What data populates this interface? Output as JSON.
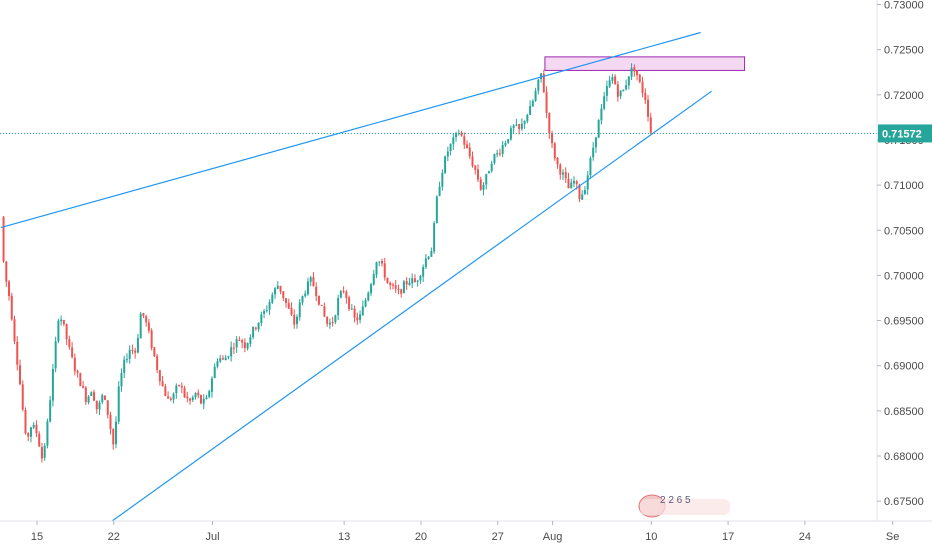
{
  "chart_data": {
    "type": "candlestick",
    "y_axis": {
      "position": "right",
      "ylim": [
        0.6728,
        0.7305
      ],
      "ticks": [
        "0.67500",
        "0.68000",
        "0.68500",
        "0.69000",
        "0.69500",
        "0.70000",
        "0.70500",
        "0.71000",
        "0.71500",
        "0.72000",
        "0.72500",
        "0.73000"
      ]
    },
    "x_axis": {
      "labels": [
        {
          "text": "15",
          "day": 3
        },
        {
          "text": "22",
          "day": 10
        },
        {
          "text": "Jul",
          "day": 19
        },
        {
          "text": "13",
          "day": 31
        },
        {
          "text": "20",
          "day": 38
        },
        {
          "text": "27",
          "day": 45
        },
        {
          "text": "Aug",
          "day": 50
        },
        {
          "text": "10",
          "day": 59
        },
        {
          "text": "17",
          "day": 66
        },
        {
          "text": "24",
          "day": 73
        },
        {
          "text": "Se",
          "day": 81
        }
      ]
    },
    "last_price": {
      "value": 0.71572,
      "label": "0.71572",
      "color": "#26a69a"
    },
    "colors": {
      "up": "#26a69a",
      "down": "#ef5350",
      "trendline": "#2196f3",
      "zone_fill": "#f3d2f0",
      "zone_border": "#9c27b0",
      "price_line": "#26a69a"
    },
    "price_path": [
      [
        -0.3,
        0.7065
      ],
      [
        0,
        0.7005
      ],
      [
        0.5,
        0.6975
      ],
      [
        1,
        0.6925
      ],
      [
        1.5,
        0.6875
      ],
      [
        2,
        0.6815
      ],
      [
        2.5,
        0.6835
      ],
      [
        3,
        0.6825
      ],
      [
        3.5,
        0.6795
      ],
      [
        4,
        0.684
      ],
      [
        4.5,
        0.69
      ],
      [
        5,
        0.696
      ],
      [
        5.5,
        0.694
      ],
      [
        6,
        0.6915
      ],
      [
        6.5,
        0.6895
      ],
      [
        7,
        0.688
      ],
      [
        7.5,
        0.6862
      ],
      [
        8,
        0.6875
      ],
      [
        8.5,
        0.685
      ],
      [
        9,
        0.6868
      ],
      [
        9.5,
        0.6845
      ],
      [
        10,
        0.681
      ],
      [
        10.5,
        0.688
      ],
      [
        11,
        0.6905
      ],
      [
        11.5,
        0.692
      ],
      [
        12,
        0.6915
      ],
      [
        12.5,
        0.6962
      ],
      [
        13,
        0.6945
      ],
      [
        13.5,
        0.692
      ],
      [
        14,
        0.6895
      ],
      [
        14.5,
        0.6875
      ],
      [
        15,
        0.686
      ],
      [
        15.5,
        0.687
      ],
      [
        16,
        0.688
      ],
      [
        16.5,
        0.6865
      ],
      [
        17,
        0.686
      ],
      [
        17.5,
        0.687
      ],
      [
        18,
        0.6858
      ],
      [
        18.5,
        0.6862
      ],
      [
        19,
        0.689
      ],
      [
        19.5,
        0.691
      ],
      [
        20,
        0.6905
      ],
      [
        20.5,
        0.6915
      ],
      [
        21,
        0.6925
      ],
      [
        21.5,
        0.693
      ],
      [
        22,
        0.6922
      ],
      [
        22.5,
        0.6935
      ],
      [
        23,
        0.6945
      ],
      [
        23.5,
        0.6955
      ],
      [
        24,
        0.6965
      ],
      [
        24.5,
        0.698
      ],
      [
        25,
        0.699
      ],
      [
        25.5,
        0.6975
      ],
      [
        26,
        0.696
      ],
      [
        26.5,
        0.6945
      ],
      [
        27,
        0.697
      ],
      [
        27.5,
        0.6985
      ],
      [
        28,
        0.6995
      ],
      [
        28.5,
        0.698
      ],
      [
        29,
        0.696
      ],
      [
        29.5,
        0.6945
      ],
      [
        30,
        0.695
      ],
      [
        30.5,
        0.6975
      ],
      [
        31,
        0.6985
      ],
      [
        31.5,
        0.6965
      ],
      [
        32,
        0.695
      ],
      [
        32.5,
        0.6955
      ],
      [
        33,
        0.6975
      ],
      [
        33.5,
        0.6995
      ],
      [
        34,
        0.702
      ],
      [
        34.5,
        0.7008
      ],
      [
        35,
        0.699
      ],
      [
        35.5,
        0.6985
      ],
      [
        36,
        0.698
      ],
      [
        36.5,
        0.699
      ],
      [
        37,
        0.6995
      ],
      [
        37.5,
        0.6992
      ],
      [
        38,
        0.7005
      ],
      [
        38.5,
        0.702
      ],
      [
        39,
        0.703
      ],
      [
        39.5,
        0.709
      ],
      [
        40,
        0.712
      ],
      [
        40.5,
        0.714
      ],
      [
        41,
        0.715
      ],
      [
        41.5,
        0.716
      ],
      [
        42,
        0.7145
      ],
      [
        42.5,
        0.713
      ],
      [
        43,
        0.7115
      ],
      [
        43.5,
        0.7095
      ],
      [
        44,
        0.711
      ],
      [
        44.5,
        0.713
      ],
      [
        45,
        0.7135
      ],
      [
        45.5,
        0.7145
      ],
      [
        46,
        0.7155
      ],
      [
        46.5,
        0.7165
      ],
      [
        47,
        0.716
      ],
      [
        47.5,
        0.7175
      ],
      [
        48,
        0.7185
      ],
      [
        48.5,
        0.7205
      ],
      [
        49,
        0.7225
      ],
      [
        49.5,
        0.7175
      ],
      [
        50,
        0.714
      ],
      [
        50.5,
        0.712
      ],
      [
        51,
        0.711
      ],
      [
        51.5,
        0.7095
      ],
      [
        52,
        0.7105
      ],
      [
        52.5,
        0.7085
      ],
      [
        53,
        0.71
      ],
      [
        53.5,
        0.713
      ],
      [
        54,
        0.716
      ],
      [
        54.5,
        0.7185
      ],
      [
        55,
        0.721
      ],
      [
        55.5,
        0.722
      ],
      [
        56,
        0.72
      ],
      [
        56.5,
        0.7205
      ],
      [
        57,
        0.7225
      ],
      [
        57.5,
        0.723
      ],
      [
        58,
        0.721
      ],
      [
        58.5,
        0.7195
      ],
      [
        59,
        0.7155
      ]
    ],
    "trendlines": [
      {
        "name": "upper-trendline",
        "from": [
          -0.3,
          0.7053
        ],
        "to": [
          63.5,
          0.7269
        ]
      },
      {
        "name": "lower-trendline",
        "from": [
          9.5,
          0.6725
        ],
        "to": [
          64.5,
          0.7204
        ]
      }
    ],
    "zones": [
      {
        "name": "resistance-zone",
        "x_from": 49.3,
        "x_to": 67.5,
        "y_low": 0.7227,
        "y_high": 0.7242
      }
    ],
    "watermark": {
      "text": "2 2 6 5"
    }
  }
}
